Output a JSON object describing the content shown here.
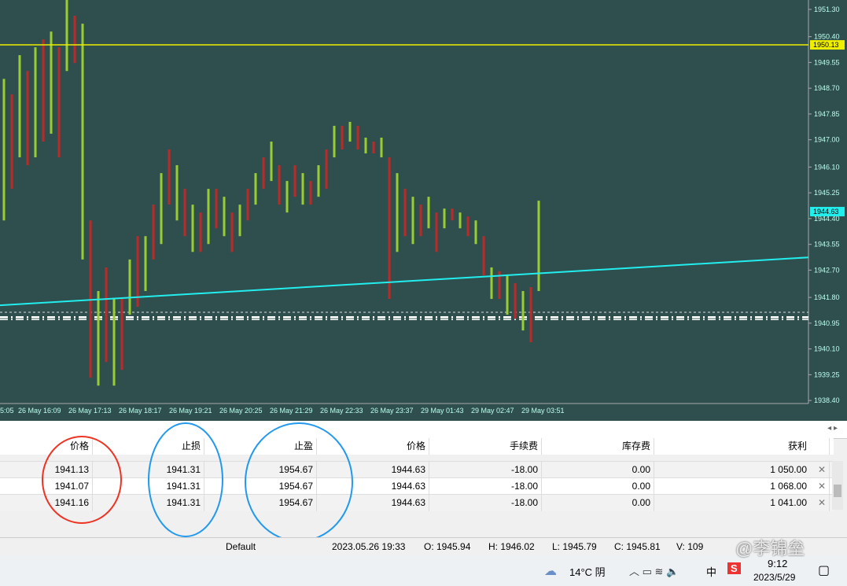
{
  "chart": {
    "ylim": [
      1938.3,
      1951.61
    ],
    "yticks": [
      {
        "value": 1951.3,
        "label": "1951.30"
      },
      {
        "value": 1950.4,
        "label": "1950.40"
      },
      1949.55,
      {
        "value": 1948.7,
        "label": "1948.70"
      },
      1947.85,
      {
        "value": 1947,
        "label": "1947.00"
      },
      {
        "value": 1946.1,
        "label": "1946.10"
      },
      1945.25,
      {
        "value": 1944.4,
        "label": "1944.40"
      },
      1943.55,
      {
        "value": 1942.7,
        "label": "1942.70"
      },
      {
        "value": 1941.8,
        "label": "1941.80"
      },
      1940.95,
      {
        "value": 1940.1,
        "label": "1940.10"
      },
      1939.25,
      {
        "value": 1938.4,
        "label": "1938.40"
      }
    ],
    "time_labels": [
      "5:05",
      "26 May 16:09",
      "26 May 17:13",
      "26 May 18:17",
      "26 May 19:21",
      "26 May 20:25",
      "26 May 21:29",
      "26 May 22:33",
      "26 May 23:37",
      "29 May 01:43",
      "29 May 02:47",
      "29 May 03:51"
    ],
    "highs": [
      1949.01,
      1948.5,
      1949.79,
      1949.27,
      1950.05,
      1950.31,
      1950.57,
      1950.05,
      1951.61,
      1951.09,
      1950.83,
      1944.34,
      1942.01,
      1942.79,
      1941.75,
      1941.75,
      1943.05,
      1943.82,
      1943.82,
      1944.86,
      1945.9,
      1946.68,
      1946.16,
      1945.38,
      1944.86,
      1944.6,
      1945.38,
      1945.38,
      1945.12,
      1944.6,
      1944.86,
      1945.38,
      1945.9,
      1946.42,
      1946.94,
      1946.16,
      1945.64,
      1946.16,
      1945.9,
      1945.64,
      1946.16,
      1946.68,
      1947.46,
      1947.46,
      1947.59,
      1947.46,
      1947.07,
      1946.94,
      1947.07,
      1946.42,
      1945.9,
      1945.38,
      1945.12,
      1944.86,
      1945.12,
      1944.6,
      1944.73,
      1944.73,
      1944.6,
      1944.47,
      1944.34,
      1943.82,
      1942.79,
      1942.66,
      1942.53,
      1942.27,
      1942.01,
      1942.14,
      1944.99
    ],
    "lows": [
      1944.34,
      1945.38,
      1946.42,
      1946.16,
      1946.42,
      1946.94,
      1947.2,
      1946.42,
      1949.27,
      1949.53,
      1943.05,
      1939.15,
      1938.89,
      1939.67,
      1938.89,
      1939.41,
      1941.23,
      1941.49,
      1942.01,
      1943.05,
      1943.56,
      1944.86,
      1944.34,
      1943.82,
      1943.3,
      1943.3,
      1943.56,
      1944.08,
      1943.82,
      1943.3,
      1943.82,
      1944.34,
      1944.86,
      1945.38,
      1945.64,
      1944.86,
      1944.6,
      1945.12,
      1944.86,
      1944.86,
      1945.12,
      1945.38,
      1946.42,
      1946.68,
      1946.94,
      1946.68,
      1946.55,
      1946.55,
      1946.42,
      1941.75,
      1943.3,
      1943.82,
      1943.56,
      1943.82,
      1944.08,
      1943.3,
      1944.08,
      1944.34,
      1944.08,
      1943.82,
      1943.56,
      1942.53,
      1941.75,
      1941.75,
      1941.23,
      1941.1,
      1940.71,
      1940.32,
      1942.01
    ],
    "level_line": 1950.13,
    "current_price": 1944.63,
    "trendline": [
      1941.54,
      1943.12
    ]
  },
  "table": {
    "headers": [
      "价格",
      "止损",
      "止盈",
      "价格",
      "手续费",
      "库存费",
      "获利"
    ],
    "rows": [
      [
        "1941.13",
        "1941.31",
        "1954.67",
        "1944.63",
        "-18.00",
        "0.00",
        "1 050.00"
      ],
      [
        "1941.07",
        "1941.31",
        "1954.67",
        "1944.63",
        "-18.00",
        "0.00",
        "1 068.00"
      ],
      [
        "1941.16",
        "1941.31",
        "1954.67",
        "1944.63",
        "-18.00",
        "0.00",
        "1 041.00"
      ]
    ]
  },
  "status": [
    "Default",
    "2023.05.26 19:33",
    "O: 1945.94",
    "H: 1946.02",
    "L: 1945.79",
    "C: 1945.81",
    "V: 109"
  ],
  "taskbar": {
    "weather": "14°C 阴",
    "ime": "中",
    "time": "9:12",
    "date": "2023/5/29"
  },
  "watermark": "@李锦垒"
}
